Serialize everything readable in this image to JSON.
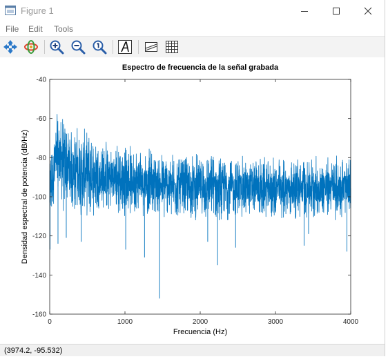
{
  "window": {
    "title": "Figure 1",
    "controls": {
      "minimize": "minimize",
      "maximize": "maximize",
      "close": "close"
    }
  },
  "menubar": {
    "items": [
      "File",
      "Edit",
      "Tools"
    ]
  },
  "toolbar": {
    "buttons": [
      "pan",
      "rotate-3d",
      "zoom-in",
      "zoom-out",
      "reset-view",
      "insert-text",
      "insert-legend",
      "toggle-grid"
    ]
  },
  "status_bar": {
    "coordinates": "(3974.2, -95.532)"
  },
  "chart_data": {
    "type": "line",
    "title": "Espectro de frecuencia de la señal grabada",
    "xlabel": "Frecuencia (Hz)",
    "ylabel": "Densidad espectral de potencia (dB/Hz)",
    "xlim": [
      0,
      4000
    ],
    "ylim": [
      -160,
      -40
    ],
    "xticks": [
      0,
      1000,
      2000,
      3000,
      4000
    ],
    "yticks": [
      -40,
      -60,
      -80,
      -100,
      -120,
      -140,
      -160
    ],
    "grid": false,
    "legend": "none",
    "series": [
      {
        "color": "#0072BD",
        "envelope": {
          "x": [
            0,
            50,
            100,
            150,
            200,
            300,
            400,
            500,
            700,
            1000,
            1300,
            1500,
            2000,
            2500,
            3000,
            3500,
            3700,
            4000
          ],
          "upper": [
            -80,
            -66,
            -52,
            -56,
            -58,
            -62,
            -64,
            -66,
            -70,
            -73,
            -75,
            -77,
            -78,
            -79,
            -80,
            -79,
            -78,
            -80
          ],
          "lower": [
            -115,
            -108,
            -105,
            -107,
            -110,
            -110,
            -110,
            -110,
            -110,
            -110,
            -110,
            -112,
            -112,
            -112,
            -112,
            -112,
            -112,
            -112
          ]
        },
        "dips": [
          {
            "x": 5,
            "y": -127
          },
          {
            "x": 110,
            "y": -124
          },
          {
            "x": 220,
            "y": -121
          },
          {
            "x": 420,
            "y": -123
          },
          {
            "x": 1010,
            "y": -127
          },
          {
            "x": 1260,
            "y": -131
          },
          {
            "x": 1460,
            "y": -152
          },
          {
            "x": 2100,
            "y": -123
          },
          {
            "x": 2230,
            "y": -135
          },
          {
            "x": 2470,
            "y": -126
          },
          {
            "x": 3380,
            "y": -125
          },
          {
            "x": 3440,
            "y": -119
          },
          {
            "x": 3950,
            "y": -128
          }
        ]
      }
    ]
  }
}
